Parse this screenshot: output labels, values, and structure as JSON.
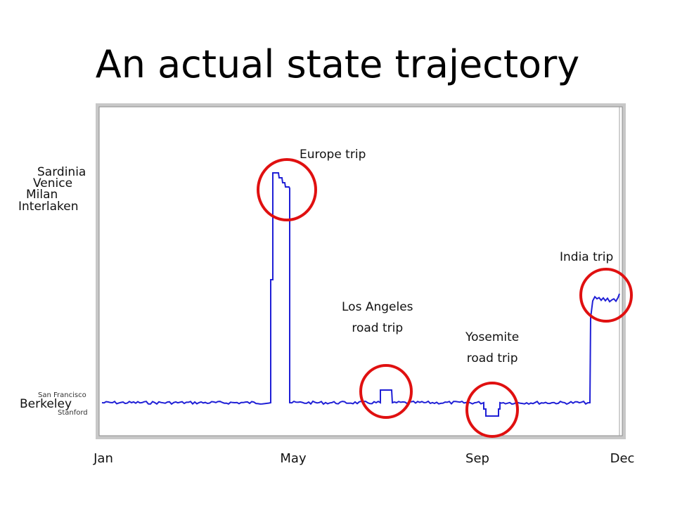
{
  "slide": {
    "title": "An actual state trajectory"
  },
  "chart_data": {
    "type": "line",
    "title": "An actual state trajectory",
    "x_ticks": [
      "Jan",
      "May",
      "Sep",
      "Dec"
    ],
    "y_categories": [
      "Berkeley",
      "San Francisco",
      "Stanford",
      "Interlaken",
      "Milan",
      "Venice",
      "Sardinia"
    ],
    "y_label_order_top_to_bottom": [
      "Sardinia",
      "Venice",
      "Milan",
      "Interlaken",
      "San Francisco",
      "Berkeley",
      "Stanford"
    ],
    "grid": false,
    "legend": "none",
    "series_color": "#1f1fd6",
    "annotation_color": "#e01010",
    "annotations": [
      {
        "line1": "Europe trip",
        "line2": ""
      },
      {
        "line1": "Los Angeles",
        "line2": "road trip"
      },
      {
        "line1": "Yosemite",
        "line2": "road trip"
      },
      {
        "line1": "India trip",
        "line2": ""
      }
    ],
    "trajectory_segments": [
      {
        "from": "Jan",
        "to": "late Apr",
        "location": "Berkeley"
      },
      {
        "from": "late Apr",
        "to": "early May",
        "location": "Europe trip (Interlaken, Milan, Venice, Sardinia)"
      },
      {
        "from": "early May",
        "to": "Jul",
        "location": "Berkeley"
      },
      {
        "from": "Jul",
        "to": "Jul",
        "location": "Los Angeles road trip"
      },
      {
        "from": "Jul",
        "to": "Sep",
        "location": "Berkeley"
      },
      {
        "from": "Sep",
        "to": "Sep",
        "location": "Yosemite road trip"
      },
      {
        "from": "Sep",
        "to": "Nov",
        "location": "Berkeley"
      },
      {
        "from": "Nov",
        "to": "Dec",
        "location": "India trip"
      }
    ]
  }
}
